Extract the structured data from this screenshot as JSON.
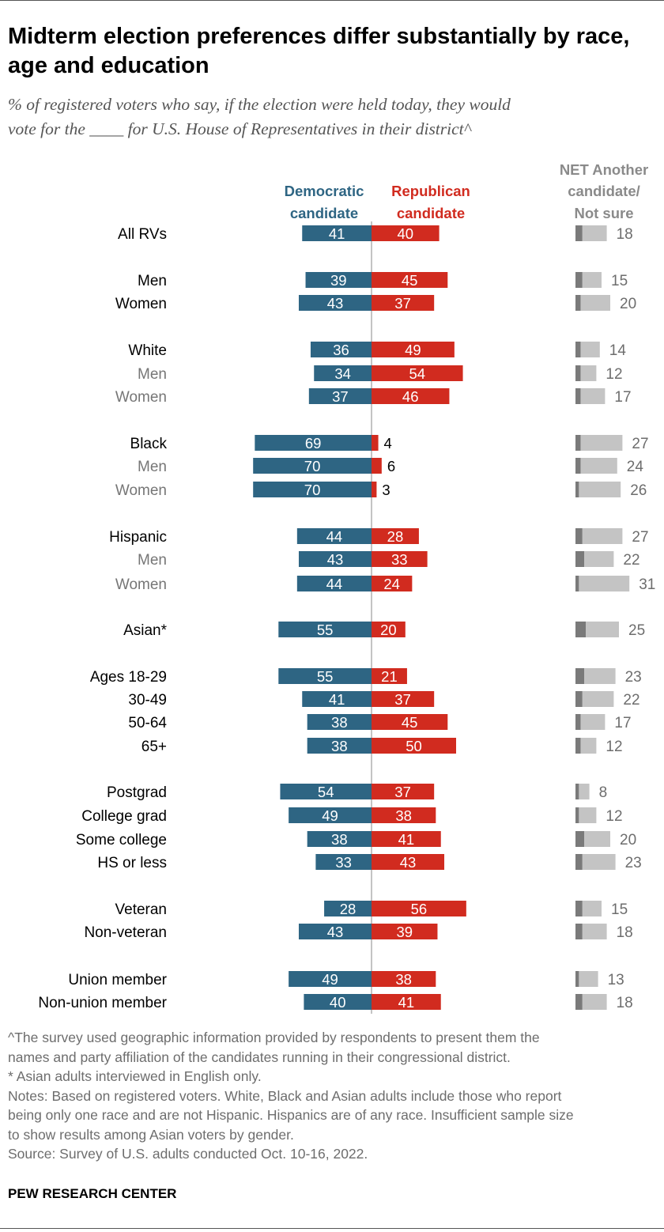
{
  "header": {
    "title": "Midterm election preferences differ substantially by race, age and education",
    "subtitle_line1": "% of registered voters who say, if the election were held today, they would",
    "subtitle_line2": "vote for the ____ for U.S. House of Representatives in their district^"
  },
  "chart_data": {
    "type": "bar",
    "colors": {
      "dem": "#2e6583",
      "rep": "#d12b1f",
      "net_dark": "#7a7a7a",
      "net_light": "#c4c4c4",
      "divider": "#b0b0b0"
    },
    "legend": {
      "dem": [
        "Democratic",
        "candidate"
      ],
      "rep": [
        "Republican",
        "candidate"
      ],
      "net": [
        "NET Another",
        "candidate/",
        "Not sure"
      ]
    },
    "rows": [
      {
        "label": "All RVs",
        "sub": false,
        "dem": 41,
        "rep": 40,
        "net": 18,
        "dark": 4
      },
      {
        "label": "Men",
        "sub": false,
        "dem": 39,
        "rep": 45,
        "net": 15,
        "dark": 4
      },
      {
        "label": "Women",
        "sub": false,
        "dem": 43,
        "rep": 37,
        "net": 20,
        "dark": 3
      },
      {
        "label": "White",
        "sub": false,
        "dem": 36,
        "rep": 49,
        "net": 14,
        "dark": 3
      },
      {
        "label": "Men",
        "sub": true,
        "dem": 34,
        "rep": 54,
        "net": 12,
        "dark": 3
      },
      {
        "label": "Women",
        "sub": true,
        "dem": 37,
        "rep": 46,
        "net": 17,
        "dark": 3
      },
      {
        "label": "Black",
        "sub": false,
        "dem": 69,
        "rep": 4,
        "net": 27,
        "dark": 3
      },
      {
        "label": "Men",
        "sub": true,
        "dem": 70,
        "rep": 6,
        "net": 24,
        "dark": 3
      },
      {
        "label": "Women",
        "sub": true,
        "dem": 70,
        "rep": 3,
        "net": 26,
        "dark": 2
      },
      {
        "label": "Hispanic",
        "sub": false,
        "dem": 44,
        "rep": 28,
        "net": 27,
        "dark": 4
      },
      {
        "label": "Men",
        "sub": true,
        "dem": 43,
        "rep": 33,
        "net": 22,
        "dark": 5
      },
      {
        "label": "Women",
        "sub": true,
        "dem": 44,
        "rep": 24,
        "net": 31,
        "dark": 2
      },
      {
        "label": "Asian*",
        "sub": false,
        "dem": 55,
        "rep": 20,
        "net": 25,
        "dark": 6
      },
      {
        "label": "Ages 18-29",
        "sub": false,
        "dem": 55,
        "rep": 21,
        "net": 23,
        "dark": 5
      },
      {
        "label": "30-49",
        "sub": false,
        "dem": 41,
        "rep": 37,
        "net": 22,
        "dark": 4
      },
      {
        "label": "50-64",
        "sub": false,
        "dem": 38,
        "rep": 45,
        "net": 17,
        "dark": 3
      },
      {
        "label": "65+",
        "sub": false,
        "dem": 38,
        "rep": 50,
        "net": 12,
        "dark": 3
      },
      {
        "label": "Postgrad",
        "sub": false,
        "dem": 54,
        "rep": 37,
        "net": 8,
        "dark": 2
      },
      {
        "label": "College grad",
        "sub": false,
        "dem": 49,
        "rep": 38,
        "net": 12,
        "dark": 2
      },
      {
        "label": "Some college",
        "sub": false,
        "dem": 38,
        "rep": 41,
        "net": 20,
        "dark": 5
      },
      {
        "label": "HS or less",
        "sub": false,
        "dem": 33,
        "rep": 43,
        "net": 23,
        "dark": 4
      },
      {
        "label": "Veteran",
        "sub": false,
        "dem": 28,
        "rep": 56,
        "net": 15,
        "dark": 4
      },
      {
        "label": "Non-veteran",
        "sub": false,
        "dem": 43,
        "rep": 39,
        "net": 18,
        "dark": 4
      },
      {
        "label": "Union member",
        "sub": false,
        "dem": 49,
        "rep": 38,
        "net": 13,
        "dark": 2
      },
      {
        "label": "Non-union member",
        "sub": false,
        "dem": 40,
        "rep": 41,
        "net": 18,
        "dark": 4
      }
    ]
  },
  "footnotes": {
    "caret_line1": "^The survey used geographic information provided by respondents to present them the",
    "caret_line2": "names and party affiliation of the candidates running in their congressional district.",
    "asian": "* Asian adults interviewed in English only.",
    "notes_line1": "Notes: Based on registered voters. White, Black and Asian adults include those who report",
    "notes_line2": "being only one race and are not Hispanic. Hispanics are of any race. Insufficient sample size",
    "notes_line3": "to show results among Asian voters by gender.",
    "source": "Source: Survey of U.S. adults conducted Oct. 10-16, 2022."
  },
  "brand": "PEW RESEARCH CENTER"
}
